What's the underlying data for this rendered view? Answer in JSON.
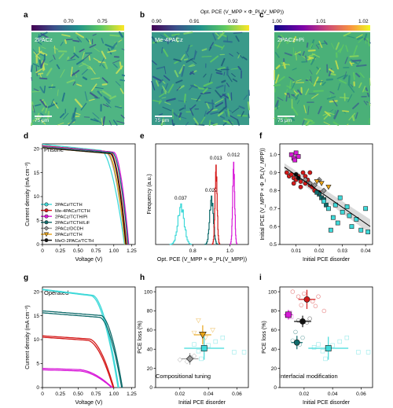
{
  "panels": {
    "a": {
      "letter": "a",
      "label": "2PACz",
      "scalebar": "75 μm",
      "ticks": [
        "0.70",
        "0.75"
      ]
    },
    "b": {
      "letter": "b",
      "label": "Me-4PACz",
      "scalebar": "75 μm",
      "ticks": [
        "0.90",
        "0.91",
        "0.92"
      ]
    },
    "c": {
      "letter": "c",
      "label": "2PACz+Pi",
      "scalebar": "75 μm",
      "ticks": [
        "1.00",
        "1.01",
        "1.02"
      ]
    },
    "d": {
      "letter": "d",
      "tag": "Pristine"
    },
    "e": {
      "letter": "e"
    },
    "f": {
      "letter": "f"
    },
    "g": {
      "letter": "g",
      "tag": "Operated"
    },
    "h": {
      "letter": "h",
      "tag": "Compositional tuning"
    },
    "i": {
      "letter": "i",
      "tag": "Interfacial modification"
    }
  },
  "colormap_title": "Opt. PCE (V_MPP × Φ_PL(V_MPP))",
  "legend": [
    {
      "name": "2PACz/TCTH",
      "color": "#3fd9d9",
      "marker": "circle"
    },
    {
      "name": "Me-4PACz/TCTH",
      "color": "#d41a1a",
      "marker": "circle"
    },
    {
      "name": "2PACz/TCTH/Pi",
      "color": "#d81ad8",
      "marker": "circle"
    },
    {
      "name": "2PACz/TCTH/LiF",
      "color": "#0f6b6b",
      "marker": "circle"
    },
    {
      "name": "2PACz/DCDH",
      "color": "#999999",
      "marker": "diamond"
    },
    {
      "name": "2PACz/TCTH",
      "color": "#e8a317",
      "marker": "triangle"
    },
    {
      "name": "MeO-2PACz/TCTH",
      "color": "#111111",
      "marker": "circle"
    }
  ],
  "chart_data": [
    {
      "panel": "d",
      "type": "line",
      "xlabel": "Voltage (V)",
      "ylabel": "Current density (mA cm⁻²)",
      "xlim": [
        0,
        1.3
      ],
      "ylim": [
        0,
        21
      ],
      "xticks": [
        "0",
        "0.25",
        "0.50",
        "0.75",
        "1.00",
        "1.25"
      ],
      "yticks": [
        "0",
        "5",
        "10",
        "15",
        "20"
      ],
      "series": [
        {
          "name": "2PACz/TCTH",
          "color": "#3fd9d9",
          "jsc": 20.9,
          "voc": 1.15,
          "knee": 0.82
        },
        {
          "name": "Me-4PACz/TCTH",
          "color": "#d41a1a",
          "jsc": 20.6,
          "voc": 1.18,
          "knee": 0.95
        },
        {
          "name": "2PACz/TCTH/Pi",
          "color": "#d81ad8",
          "jsc": 20.5,
          "voc": 1.21,
          "knee": 1.0
        },
        {
          "name": "2PACz/TCTH/LiF",
          "color": "#0f6b6b",
          "jsc": 20.4,
          "voc": 1.2,
          "knee": 0.98
        },
        {
          "name": "2PACz/DCDH",
          "color": "#999999",
          "jsc": 20.3,
          "voc": 1.16,
          "knee": 0.9
        },
        {
          "name": "2PACz/TCTH",
          "color": "#e8a317",
          "jsc": 20.2,
          "voc": 1.16,
          "knee": 0.92
        },
        {
          "name": "MeO-2PACz/TCTH",
          "color": "#111111",
          "jsc": 20.2,
          "voc": 1.17,
          "knee": 0.95
        }
      ]
    },
    {
      "panel": "e",
      "type": "line",
      "xlabel": "Opt. PCE (V_MPP × Φ_PL(V_MPP))",
      "ylabel": "Frequency (a.u.)",
      "xlim": [
        0.6,
        1.1
      ],
      "xticks": [
        "0.8",
        "1.0"
      ],
      "series": [
        {
          "color": "#3fd9d9",
          "mean": 0.735,
          "width": 0.037,
          "height": 0.42,
          "label": "0.037"
        },
        {
          "color": "#0f6b6b",
          "mean": 0.9,
          "width": 0.022,
          "height": 0.5,
          "label": "0.022"
        },
        {
          "color": "#d41a1a",
          "mean": 0.925,
          "width": 0.013,
          "height": 0.82,
          "label": "0.013"
        },
        {
          "color": "#d81ad8",
          "mean": 1.02,
          "width": 0.012,
          "height": 0.85,
          "label": "0.012"
        }
      ]
    },
    {
      "panel": "f",
      "type": "scatter",
      "xlabel": "Initial PCE disorder",
      "ylabel": "Initial PCE (V_MPP × Φ_PL(V_MPP))",
      "xlim": [
        0.003,
        0.043
      ],
      "ylim": [
        0.5,
        1.06
      ],
      "xticks": [
        "0.01",
        "0.02",
        "0.03",
        "0.04"
      ],
      "yticks": [
        "0.5",
        "0.6",
        "0.7",
        "0.8",
        "0.9",
        "1.0"
      ],
      "fit": {
        "x": [
          0.005,
          0.042
        ],
        "y": [
          0.93,
          0.6
        ]
      },
      "groups": [
        {
          "color": "#d81ad8",
          "marker": "square",
          "points": [
            [
              0.008,
              1.0
            ],
            [
              0.009,
              0.98
            ],
            [
              0.01,
              1.01
            ],
            [
              0.011,
              0.99
            ],
            [
              0.0095,
              0.97
            ]
          ]
        },
        {
          "color": "#d41a1a",
          "marker": "circle",
          "points": [
            [
              0.006,
              0.9
            ],
            [
              0.007,
              0.88
            ],
            [
              0.008,
              0.89
            ],
            [
              0.009,
              0.87
            ],
            [
              0.01,
              0.86
            ],
            [
              0.011,
              0.88
            ],
            [
              0.012,
              0.85
            ],
            [
              0.013,
              0.9
            ],
            [
              0.014,
              0.84
            ],
            [
              0.015,
              0.86
            ],
            [
              0.016,
              0.83
            ],
            [
              0.017,
              0.82
            ],
            [
              0.018,
              0.8
            ],
            [
              0.02,
              0.79
            ],
            [
              0.012,
              0.82
            ],
            [
              0.014,
              0.88
            ],
            [
              0.016,
              0.9
            ],
            [
              0.009,
              0.84
            ]
          ]
        },
        {
          "color": "#999999",
          "marker": "diamond",
          "points": [
            [
              0.014,
              0.86
            ],
            [
              0.016,
              0.84
            ],
            [
              0.018,
              0.83
            ],
            [
              0.02,
              0.86
            ],
            [
              0.022,
              0.8
            ]
          ]
        },
        {
          "color": "#e8a317",
          "marker": "triangle",
          "points": [
            [
              0.019,
              0.85
            ],
            [
              0.021,
              0.84
            ],
            [
              0.024,
              0.82
            ]
          ]
        },
        {
          "color": "#0f6b6b",
          "marker": "square",
          "points": [
            [
              0.02,
              0.78
            ],
            [
              0.021,
              0.76
            ],
            [
              0.022,
              0.75
            ],
            [
              0.023,
              0.72
            ],
            [
              0.019,
              0.79
            ]
          ]
        },
        {
          "color": "#3fd9d9",
          "marker": "square",
          "points": [
            [
              0.022,
              0.74
            ],
            [
              0.024,
              0.7
            ],
            [
              0.026,
              0.65
            ],
            [
              0.027,
              0.72
            ],
            [
              0.028,
              0.62
            ],
            [
              0.03,
              0.68
            ],
            [
              0.032,
              0.71
            ],
            [
              0.034,
              0.6
            ],
            [
              0.036,
              0.64
            ],
            [
              0.038,
              0.58
            ],
            [
              0.041,
              0.57
            ],
            [
              0.025,
              0.58
            ],
            [
              0.029,
              0.76
            ],
            [
              0.033,
              0.66
            ],
            [
              0.04,
              0.7
            ]
          ]
        },
        {
          "color": "#111111",
          "marker": "circle",
          "points": [
            [
              0.01,
              0.89
            ],
            [
              0.011,
              0.87
            ]
          ]
        }
      ]
    },
    {
      "panel": "g",
      "type": "line",
      "xlabel": "Voltage (V)",
      "ylabel": "Current density (mA cm⁻²)",
      "xlim": [
        0,
        1.3
      ],
      "ylim": [
        0,
        21
      ],
      "xticks": [
        "0",
        "0.25",
        "0.50",
        "0.75",
        "1.00",
        "1.25"
      ],
      "yticks": [
        "0",
        "5",
        "10",
        "15",
        "20"
      ],
      "series": [
        {
          "color": "#3fd9d9",
          "jsc": 20.5,
          "voc": 1.07,
          "knee": 0.7
        },
        {
          "color": "#3fd9d9",
          "jsc": 20.4,
          "voc": 1.06,
          "knee": 0.68
        },
        {
          "color": "#0f6b6b",
          "jsc": 16.0,
          "voc": 1.12,
          "knee": 0.82
        },
        {
          "color": "#0f6b6b",
          "jsc": 15.6,
          "voc": 1.11,
          "knee": 0.8
        },
        {
          "color": "#d41a1a",
          "jsc": 10.8,
          "voc": 1.0,
          "knee": 0.65
        },
        {
          "color": "#d41a1a",
          "jsc": 10.5,
          "voc": 0.99,
          "knee": 0.63
        },
        {
          "color": "#d81ad8",
          "jsc": 4.0,
          "voc": 0.98,
          "knee": 0.5
        },
        {
          "color": "#d81ad8",
          "jsc": 3.7,
          "voc": 0.97,
          "knee": 0.5
        }
      ]
    },
    {
      "panel": "h",
      "type": "scatter",
      "xlabel": "Initial PCE disorder",
      "ylabel": "PCE loss (%)",
      "xlim": [
        0.003,
        0.068
      ],
      "ylim": [
        0,
        105
      ],
      "xticks": [
        "0.02",
        "0.04",
        "0.06"
      ],
      "yticks": [
        "0",
        "20",
        "40",
        "60",
        "80",
        "100"
      ],
      "means": [
        {
          "color": "#999999",
          "marker": "diamond",
          "x": 0.027,
          "y": 30,
          "xerr": 0.006,
          "yerr": 6
        },
        {
          "color": "#e8a317",
          "marker": "triangle",
          "x": 0.036,
          "y": 55,
          "xerr": 0.006,
          "yerr": 10
        },
        {
          "color": "#3fd9d9",
          "marker": "square",
          "x": 0.037,
          "y": 41,
          "xerr": 0.014,
          "yerr": 12
        }
      ],
      "groups": [
        {
          "color": "#999999",
          "marker": "diamond",
          "points": [
            [
              0.02,
              29
            ],
            [
              0.025,
              27
            ],
            [
              0.03,
              33
            ],
            [
              0.028,
              31
            ]
          ]
        },
        {
          "color": "#e8a317",
          "marker": "triangle",
          "points": [
            [
              0.033,
              70
            ],
            [
              0.038,
              52
            ],
            [
              0.043,
              60
            ],
            [
              0.03,
              57
            ]
          ]
        },
        {
          "color": "#3fd9d9",
          "marker": "square",
          "points": [
            [
              0.03,
              45
            ],
            [
              0.033,
              38
            ],
            [
              0.04,
              44
            ],
            [
              0.045,
              48
            ],
            [
              0.05,
              52
            ],
            [
              0.058,
              37
            ],
            [
              0.065,
              37
            ],
            [
              0.035,
              30
            ]
          ]
        }
      ]
    },
    {
      "panel": "i",
      "type": "scatter",
      "xlabel": "Initial PCE disorder",
      "ylabel": "PCE loss (%)",
      "xlim": [
        0.003,
        0.068
      ],
      "ylim": [
        0,
        105
      ],
      "xticks": [
        "0.02",
        "0.04",
        "0.06"
      ],
      "yticks": [
        "0",
        "20",
        "40",
        "60",
        "80",
        "100"
      ],
      "means": [
        {
          "color": "#d41a1a",
          "marker": "circle",
          "x": 0.022,
          "y": 92,
          "xerr": 0.006,
          "yerr": 10
        },
        {
          "color": "#d81ad8",
          "marker": "square",
          "x": 0.009,
          "y": 76,
          "xerr": 0.003,
          "yerr": 5
        },
        {
          "color": "#111111",
          "marker": "circle",
          "x": 0.019,
          "y": 69,
          "xerr": 0.006,
          "yerr": 6
        },
        {
          "color": "#0f6b6b",
          "marker": "circle",
          "x": 0.015,
          "y": 47,
          "xerr": 0.004,
          "yerr": 7
        },
        {
          "color": "#3fd9d9",
          "marker": "square",
          "x": 0.037,
          "y": 41,
          "xerr": 0.014,
          "yerr": 12
        }
      ],
      "groups": [
        {
          "color": "#d41a1a",
          "marker": "circle",
          "points": [
            [
              0.012,
              100
            ],
            [
              0.016,
              95
            ],
            [
              0.02,
              98
            ],
            [
              0.026,
              90
            ],
            [
              0.028,
              85
            ],
            [
              0.03,
              95
            ],
            [
              0.034,
              80
            ],
            [
              0.018,
              86
            ]
          ]
        },
        {
          "color": "#d81ad8",
          "marker": "square",
          "points": [
            [
              0.008,
              75
            ],
            [
              0.01,
              78
            ],
            [
              0.011,
              74
            ]
          ]
        },
        {
          "color": "#111111",
          "marker": "circle",
          "points": [
            [
              0.016,
              70
            ],
            [
              0.022,
              68
            ],
            [
              0.024,
              72
            ]
          ]
        },
        {
          "color": "#0f6b6b",
          "marker": "circle",
          "points": [
            [
              0.012,
              49
            ],
            [
              0.017,
              45
            ],
            [
              0.019,
              52
            ],
            [
              0.014,
              58
            ]
          ]
        },
        {
          "color": "#3fd9d9",
          "marker": "square",
          "points": [
            [
              0.03,
              45
            ],
            [
              0.033,
              38
            ],
            [
              0.04,
              44
            ],
            [
              0.045,
              48
            ],
            [
              0.05,
              52
            ],
            [
              0.058,
              37
            ],
            [
              0.065,
              37
            ],
            [
              0.035,
              30
            ],
            [
              0.027,
              42
            ]
          ]
        }
      ]
    }
  ]
}
